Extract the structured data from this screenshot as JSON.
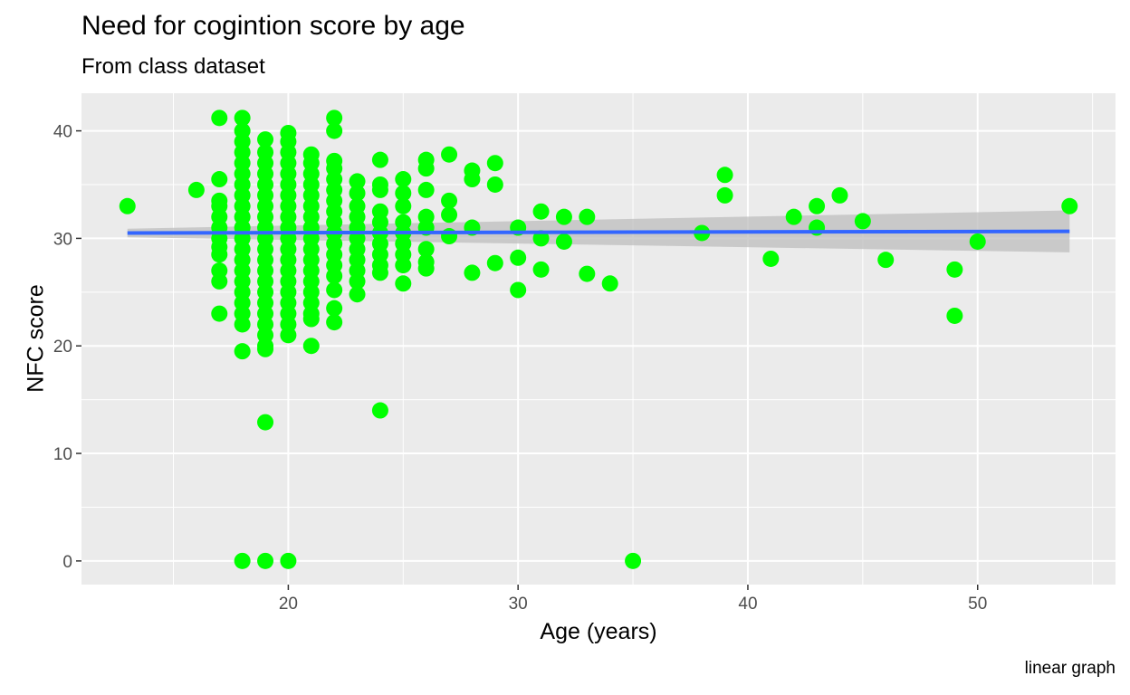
{
  "chart_data": {
    "type": "scatter",
    "title": "Need for cogintion score by age",
    "subtitle": "From class dataset",
    "xlabel": "Age (years)",
    "ylabel": "NFC score",
    "caption": "linear graph",
    "xlim": [
      11,
      56
    ],
    "ylim": [
      -2.2,
      43.5
    ],
    "x_ticks": [
      20,
      30,
      40,
      50
    ],
    "y_ticks": [
      0,
      10,
      20,
      30,
      40
    ],
    "grid": true,
    "point_color": "#00ff00",
    "line_color": "#3366ff",
    "ribbon_color": "#bebebe",
    "panel_color": "#ebebeb",
    "regression": {
      "x": [
        13,
        54
      ],
      "y": [
        30.5,
        30.65
      ],
      "ci_at_x_start": [
        30.1,
        30.9
      ],
      "ci_at_x_end": [
        28.7,
        32.6
      ]
    },
    "points": [
      [
        13,
        33
      ],
      [
        16,
        34.5
      ],
      [
        17,
        41.2
      ],
      [
        17,
        35.5
      ],
      [
        17,
        33.5
      ],
      [
        17,
        33
      ],
      [
        17,
        32
      ],
      [
        17,
        31
      ],
      [
        17,
        30
      ],
      [
        17,
        29.2
      ],
      [
        17,
        28.5
      ],
      [
        17,
        27
      ],
      [
        17,
        26
      ],
      [
        17,
        23
      ],
      [
        18,
        41.2
      ],
      [
        18,
        40
      ],
      [
        18,
        39
      ],
      [
        18,
        38
      ],
      [
        18,
        37
      ],
      [
        18,
        36
      ],
      [
        18,
        35
      ],
      [
        18,
        34
      ],
      [
        18,
        33
      ],
      [
        18,
        32
      ],
      [
        18,
        31
      ],
      [
        18,
        30
      ],
      [
        18,
        29
      ],
      [
        18,
        28
      ],
      [
        18,
        27
      ],
      [
        18,
        26
      ],
      [
        18,
        25
      ],
      [
        18,
        24
      ],
      [
        18,
        23
      ],
      [
        18,
        22
      ],
      [
        18,
        19.5
      ],
      [
        18,
        0
      ],
      [
        19,
        39.2
      ],
      [
        19,
        38
      ],
      [
        19,
        37
      ],
      [
        19,
        36
      ],
      [
        19,
        35
      ],
      [
        19,
        34
      ],
      [
        19,
        33
      ],
      [
        19,
        32
      ],
      [
        19,
        31
      ],
      [
        19,
        30
      ],
      [
        19,
        29
      ],
      [
        19,
        28
      ],
      [
        19,
        27
      ],
      [
        19,
        26
      ],
      [
        19,
        25
      ],
      [
        19,
        24
      ],
      [
        19,
        23
      ],
      [
        19,
        22
      ],
      [
        19,
        21
      ],
      [
        19,
        20
      ],
      [
        19,
        19.7
      ],
      [
        19,
        12.9
      ],
      [
        19,
        0
      ],
      [
        20,
        39.8
      ],
      [
        20,
        39
      ],
      [
        20,
        38
      ],
      [
        20,
        37
      ],
      [
        20,
        36
      ],
      [
        20,
        35
      ],
      [
        20,
        34
      ],
      [
        20,
        33
      ],
      [
        20,
        32
      ],
      [
        20,
        31
      ],
      [
        20,
        30
      ],
      [
        20,
        29
      ],
      [
        20,
        28
      ],
      [
        20,
        27
      ],
      [
        20,
        26
      ],
      [
        20,
        25
      ],
      [
        20,
        24
      ],
      [
        20,
        23
      ],
      [
        20,
        22
      ],
      [
        20,
        21
      ],
      [
        20,
        0
      ],
      [
        21,
        37.8
      ],
      [
        21,
        37
      ],
      [
        21,
        36
      ],
      [
        21,
        35
      ],
      [
        21,
        34
      ],
      [
        21,
        33
      ],
      [
        21,
        32
      ],
      [
        21,
        31
      ],
      [
        21,
        30
      ],
      [
        21,
        29
      ],
      [
        21,
        28
      ],
      [
        21,
        27
      ],
      [
        21,
        26
      ],
      [
        21,
        25
      ],
      [
        21,
        24
      ],
      [
        21,
        23
      ],
      [
        21,
        22.5
      ],
      [
        21,
        20
      ],
      [
        22,
        41.2
      ],
      [
        22,
        40
      ],
      [
        22,
        37.2
      ],
      [
        22,
        36.5
      ],
      [
        22,
        35.5
      ],
      [
        22,
        34.5
      ],
      [
        22,
        33.5
      ],
      [
        22,
        32.5
      ],
      [
        22,
        31.5
      ],
      [
        22,
        30.5
      ],
      [
        22,
        29.5
      ],
      [
        22,
        28.5
      ],
      [
        22,
        27.5
      ],
      [
        22,
        26.5
      ],
      [
        22,
        25.2
      ],
      [
        22,
        23.5
      ],
      [
        22,
        22.2
      ],
      [
        23,
        35.3
      ],
      [
        23,
        34.2
      ],
      [
        23,
        33
      ],
      [
        23,
        32
      ],
      [
        23,
        31
      ],
      [
        23,
        30
      ],
      [
        23,
        29
      ],
      [
        23,
        28
      ],
      [
        23,
        27
      ],
      [
        23,
        26
      ],
      [
        23,
        24.8
      ],
      [
        24,
        37.3
      ],
      [
        24,
        35
      ],
      [
        24,
        34.5
      ],
      [
        24,
        32.5
      ],
      [
        24,
        31.5
      ],
      [
        24,
        30.5
      ],
      [
        24,
        29.5
      ],
      [
        24,
        28.5
      ],
      [
        24,
        27.5
      ],
      [
        24,
        26.8
      ],
      [
        24,
        14
      ],
      [
        25,
        35.5
      ],
      [
        25,
        34.2
      ],
      [
        25,
        33
      ],
      [
        25,
        31.5
      ],
      [
        25,
        30.5
      ],
      [
        25,
        29.5
      ],
      [
        25,
        28.5
      ],
      [
        25,
        27.5
      ],
      [
        25,
        25.8
      ],
      [
        26,
        37.3
      ],
      [
        26,
        36.5
      ],
      [
        26,
        34.5
      ],
      [
        26,
        32
      ],
      [
        26,
        31
      ],
      [
        26,
        29
      ],
      [
        26,
        27.8
      ],
      [
        26,
        27.2
      ],
      [
        27,
        37.8
      ],
      [
        27,
        33.5
      ],
      [
        27,
        32.2
      ],
      [
        27,
        30.2
      ],
      [
        28,
        36.3
      ],
      [
        28,
        35.5
      ],
      [
        28,
        31
      ],
      [
        28,
        26.8
      ],
      [
        29,
        37
      ],
      [
        29,
        35
      ],
      [
        29,
        27.7
      ],
      [
        30,
        31
      ],
      [
        30,
        28.2
      ],
      [
        30,
        25.2
      ],
      [
        31,
        32.5
      ],
      [
        31,
        30
      ],
      [
        31,
        27.1
      ],
      [
        32,
        32
      ],
      [
        32,
        29.7
      ],
      [
        33,
        32
      ],
      [
        33,
        26.7
      ],
      [
        34,
        25.8
      ],
      [
        35,
        0
      ],
      [
        38,
        30.5
      ],
      [
        39,
        35.9
      ],
      [
        39,
        34
      ],
      [
        41,
        28.1
      ],
      [
        42,
        32
      ],
      [
        43,
        33
      ],
      [
        43,
        31
      ],
      [
        44,
        34
      ],
      [
        45,
        31.6
      ],
      [
        46,
        28
      ],
      [
        49,
        27.1
      ],
      [
        49,
        22.8
      ],
      [
        50,
        29.7
      ],
      [
        54,
        33
      ]
    ]
  }
}
